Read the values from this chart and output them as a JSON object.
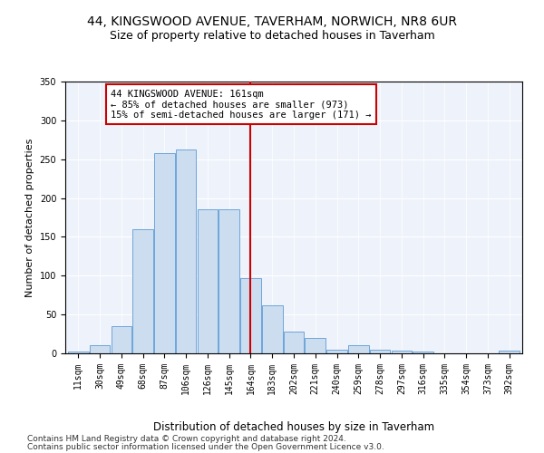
{
  "title1": "44, KINGSWOOD AVENUE, TAVERHAM, NORWICH, NR8 6UR",
  "title2": "Size of property relative to detached houses in Taverham",
  "xlabel": "Distribution of detached houses by size in Taverham",
  "ylabel": "Number of detached properties",
  "bar_labels": [
    "11sqm",
    "30sqm",
    "49sqm",
    "68sqm",
    "87sqm",
    "106sqm",
    "126sqm",
    "145sqm",
    "164sqm",
    "183sqm",
    "202sqm",
    "221sqm",
    "240sqm",
    "259sqm",
    "278sqm",
    "297sqm",
    "316sqm",
    "335sqm",
    "354sqm",
    "373sqm",
    "392sqm"
  ],
  "bar_values": [
    2,
    10,
    35,
    160,
    258,
    263,
    185,
    185,
    97,
    62,
    28,
    20,
    5,
    10,
    5,
    3,
    2,
    0,
    0,
    0,
    3
  ],
  "bar_color": "#ccddf0",
  "bar_edge_color": "#5b9bd5",
  "vline_x_index": 8,
  "vline_color": "#cc0000",
  "annotation_text": "44 KINGSWOOD AVENUE: 161sqm\n← 85% of detached houses are smaller (973)\n15% of semi-detached houses are larger (171) →",
  "annotation_box_color": "#ffffff",
  "annotation_box_edge": "#cc0000",
  "ylim": [
    0,
    350
  ],
  "yticks": [
    0,
    50,
    100,
    150,
    200,
    250,
    300,
    350
  ],
  "background_color": "#eef2fa",
  "footer1": "Contains HM Land Registry data © Crown copyright and database right 2024.",
  "footer2": "Contains public sector information licensed under the Open Government Licence v3.0.",
  "title1_fontsize": 10,
  "title2_fontsize": 9,
  "xlabel_fontsize": 8.5,
  "ylabel_fontsize": 8,
  "tick_fontsize": 7,
  "annotation_fontsize": 7.5,
  "footer_fontsize": 6.5
}
